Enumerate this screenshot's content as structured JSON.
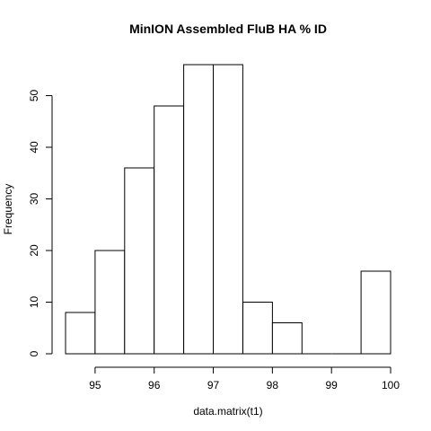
{
  "chart_data": {
    "type": "bar",
    "title": "MinION Assembled FluB HA % ID",
    "xlabel": "data.matrix(t1)",
    "ylabel": "Frequency",
    "bins": [
      {
        "x0": 94.5,
        "x1": 95.0,
        "count": 8
      },
      {
        "x0": 95.0,
        "x1": 95.5,
        "count": 20
      },
      {
        "x0": 95.5,
        "x1": 96.0,
        "count": 36
      },
      {
        "x0": 96.0,
        "x1": 96.5,
        "count": 48
      },
      {
        "x0": 96.5,
        "x1": 97.0,
        "count": 56
      },
      {
        "x0": 97.0,
        "x1": 97.5,
        "count": 56
      },
      {
        "x0": 97.5,
        "x1": 98.0,
        "count": 10
      },
      {
        "x0": 98.0,
        "x1": 98.5,
        "count": 6
      },
      {
        "x0": 98.5,
        "x1": 99.0,
        "count": 0
      },
      {
        "x0": 99.0,
        "x1": 99.5,
        "count": 0
      },
      {
        "x0": 99.5,
        "x1": 100.0,
        "count": 16
      }
    ],
    "x_ticks": [
      95,
      96,
      97,
      98,
      99,
      100
    ],
    "x_tick_labels": [
      "95",
      "96",
      "97",
      "98",
      "99",
      "100"
    ],
    "y_ticks": [
      0,
      10,
      20,
      30,
      40,
      50
    ],
    "y_tick_labels": [
      "0",
      "10",
      "20",
      "30",
      "40",
      "50"
    ],
    "xlim": [
      94.5,
      100.0
    ],
    "ylim": [
      0,
      56
    ],
    "grid": false,
    "legend": "none",
    "bar_fill": "#ffffff",
    "bar_stroke": "#000000"
  }
}
